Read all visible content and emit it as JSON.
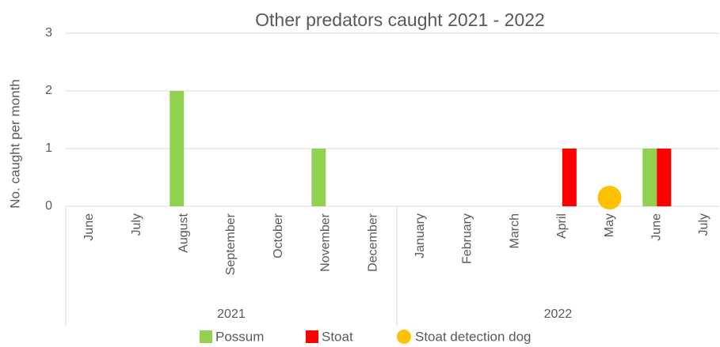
{
  "chart_data": {
    "type": "bar",
    "title": "Other predators caught 2021 - 2022",
    "y_label": "No. caught per month",
    "categories": [
      "June",
      "July",
      "August",
      "September",
      "October",
      "November",
      "December",
      "January",
      "February",
      "March",
      "April",
      "May",
      "June",
      "July"
    ],
    "category_groups": [
      {
        "label": "2021",
        "count": 7
      },
      {
        "label": "2022",
        "count": 7
      }
    ],
    "series": [
      {
        "name": "Possum",
        "color": "#92d050",
        "values": [
          0,
          0,
          2,
          0,
          0,
          1,
          0,
          0,
          0,
          0,
          0,
          0,
          1,
          0
        ]
      },
      {
        "name": "Stoat",
        "color": "#ff0000",
        "values": [
          0,
          0,
          0,
          0,
          0,
          0,
          0,
          0,
          0,
          0,
          1,
          0,
          1,
          0
        ]
      },
      {
        "name": "Stoat detection dog",
        "color": "#ffc000",
        "type": "scatter",
        "values": [
          null,
          null,
          null,
          null,
          null,
          null,
          null,
          null,
          null,
          null,
          null,
          0.15,
          null,
          null
        ]
      }
    ],
    "ylim": [
      0,
      3
    ],
    "yticks": [
      0,
      1,
      2,
      3
    ],
    "grid": true,
    "legend": "bottom"
  }
}
